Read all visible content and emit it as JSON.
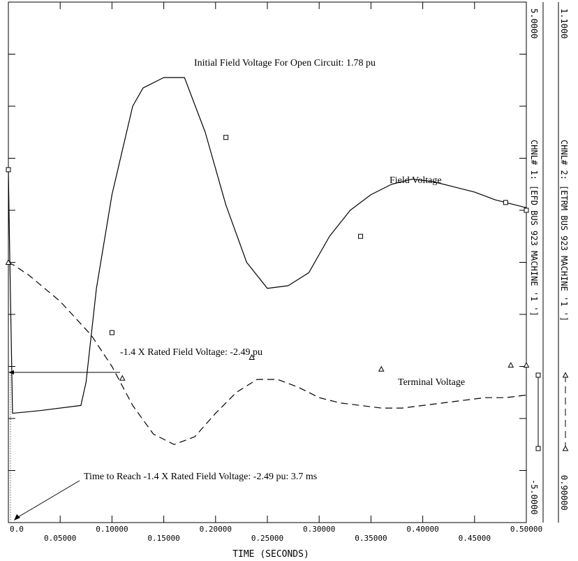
{
  "chart_data": {
    "type": "line",
    "xlabel": "TIME  (SECONDS)",
    "xlim": [
      0,
      0.5
    ],
    "x_ticks": [
      {
        "value": 0.0,
        "label": "0.0"
      },
      {
        "value": 0.05,
        "label": "0.05000"
      },
      {
        "value": 0.1,
        "label": "0.10000"
      },
      {
        "value": 0.15,
        "label": "0.15000"
      },
      {
        "value": 0.2,
        "label": "0.20000"
      },
      {
        "value": 0.25,
        "label": "0.25000"
      },
      {
        "value": 0.3,
        "label": "0.30000"
      },
      {
        "value": 0.35,
        "label": "0.35000"
      },
      {
        "value": 0.4,
        "label": "0.40000"
      },
      {
        "value": 0.45,
        "label": "0.45000"
      },
      {
        "value": 0.5,
        "label": "0.50000"
      }
    ],
    "grid": false,
    "series": [
      {
        "name": "CHNL# 1: [EFD   BUS 923      MACHINE '1 ']",
        "axis_max_label": "5.0000",
        "axis_min_label": "-5.0000",
        "ylim": [
          -5,
          5
        ],
        "line_style": "solid",
        "marker": "square",
        "x": [
          0,
          0.001,
          0.004,
          0.03,
          0.07,
          0.075,
          0.085,
          0.1,
          0.12,
          0.13,
          0.15,
          0.17,
          0.19,
          0.21,
          0.23,
          0.25,
          0.27,
          0.29,
          0.31,
          0.33,
          0.35,
          0.37,
          0.39,
          0.41,
          0.43,
          0.45,
          0.47,
          0.5
        ],
        "y": [
          1.78,
          0.5,
          -2.9,
          -2.85,
          -2.75,
          -2.3,
          -0.5,
          1.3,
          3.0,
          3.35,
          3.55,
          3.55,
          2.5,
          1.1,
          0.0,
          -0.5,
          -0.45,
          -0.2,
          0.5,
          1.0,
          1.3,
          1.5,
          1.6,
          1.55,
          1.45,
          1.35,
          1.2,
          1.05
        ],
        "markers_x": [
          0,
          0.1,
          0.21,
          0.34,
          0.48,
          0.5
        ],
        "markers_y": [
          1.78,
          -1.35,
          2.4,
          0.5,
          1.15,
          1.0
        ]
      },
      {
        "name": "CHNL# 2: [ETRM   BUS 923      MACHINE '1 ']",
        "axis_max_label": "1.1000",
        "axis_min_label": "0.90000",
        "ylim": [
          0.9,
          1.1
        ],
        "line_style": "dashed",
        "marker": "triangle",
        "x": [
          0,
          0.005,
          0.02,
          0.05,
          0.08,
          0.1,
          0.12,
          0.14,
          0.16,
          0.18,
          0.2,
          0.22,
          0.24,
          0.26,
          0.28,
          0.3,
          0.32,
          0.34,
          0.36,
          0.38,
          0.4,
          0.42,
          0.44,
          0.46,
          0.48,
          0.5
        ],
        "y": [
          1.0,
          0.999,
          0.995,
          0.985,
          0.972,
          0.96,
          0.945,
          0.934,
          0.93,
          0.933,
          0.942,
          0.95,
          0.955,
          0.955,
          0.952,
          0.948,
          0.946,
          0.945,
          0.944,
          0.944,
          0.945,
          0.946,
          0.947,
          0.948,
          0.948,
          0.949
        ],
        "markers_x": [
          0,
          0.11,
          0.235,
          0.36,
          0.485,
          0.5
        ],
        "markers_y": [
          1.0,
          0.9555,
          0.9635,
          0.959,
          0.9605,
          0.9605
        ]
      }
    ],
    "annotations": [
      {
        "id": "initial",
        "text": "Initial Field Voltage For Open Circuit: 1.78 pu"
      },
      {
        "id": "field",
        "text": "Field Voltage"
      },
      {
        "id": "rated",
        "text": "-1.4 X Rated Field Voltage: -2.49 pu"
      },
      {
        "id": "terminal",
        "text": "Terminal Voltage"
      },
      {
        "id": "time-to-reach",
        "text": "Time to Reach -1.4 X Rated Field Voltage: -2.49 pu: 3.7 ms"
      }
    ]
  }
}
